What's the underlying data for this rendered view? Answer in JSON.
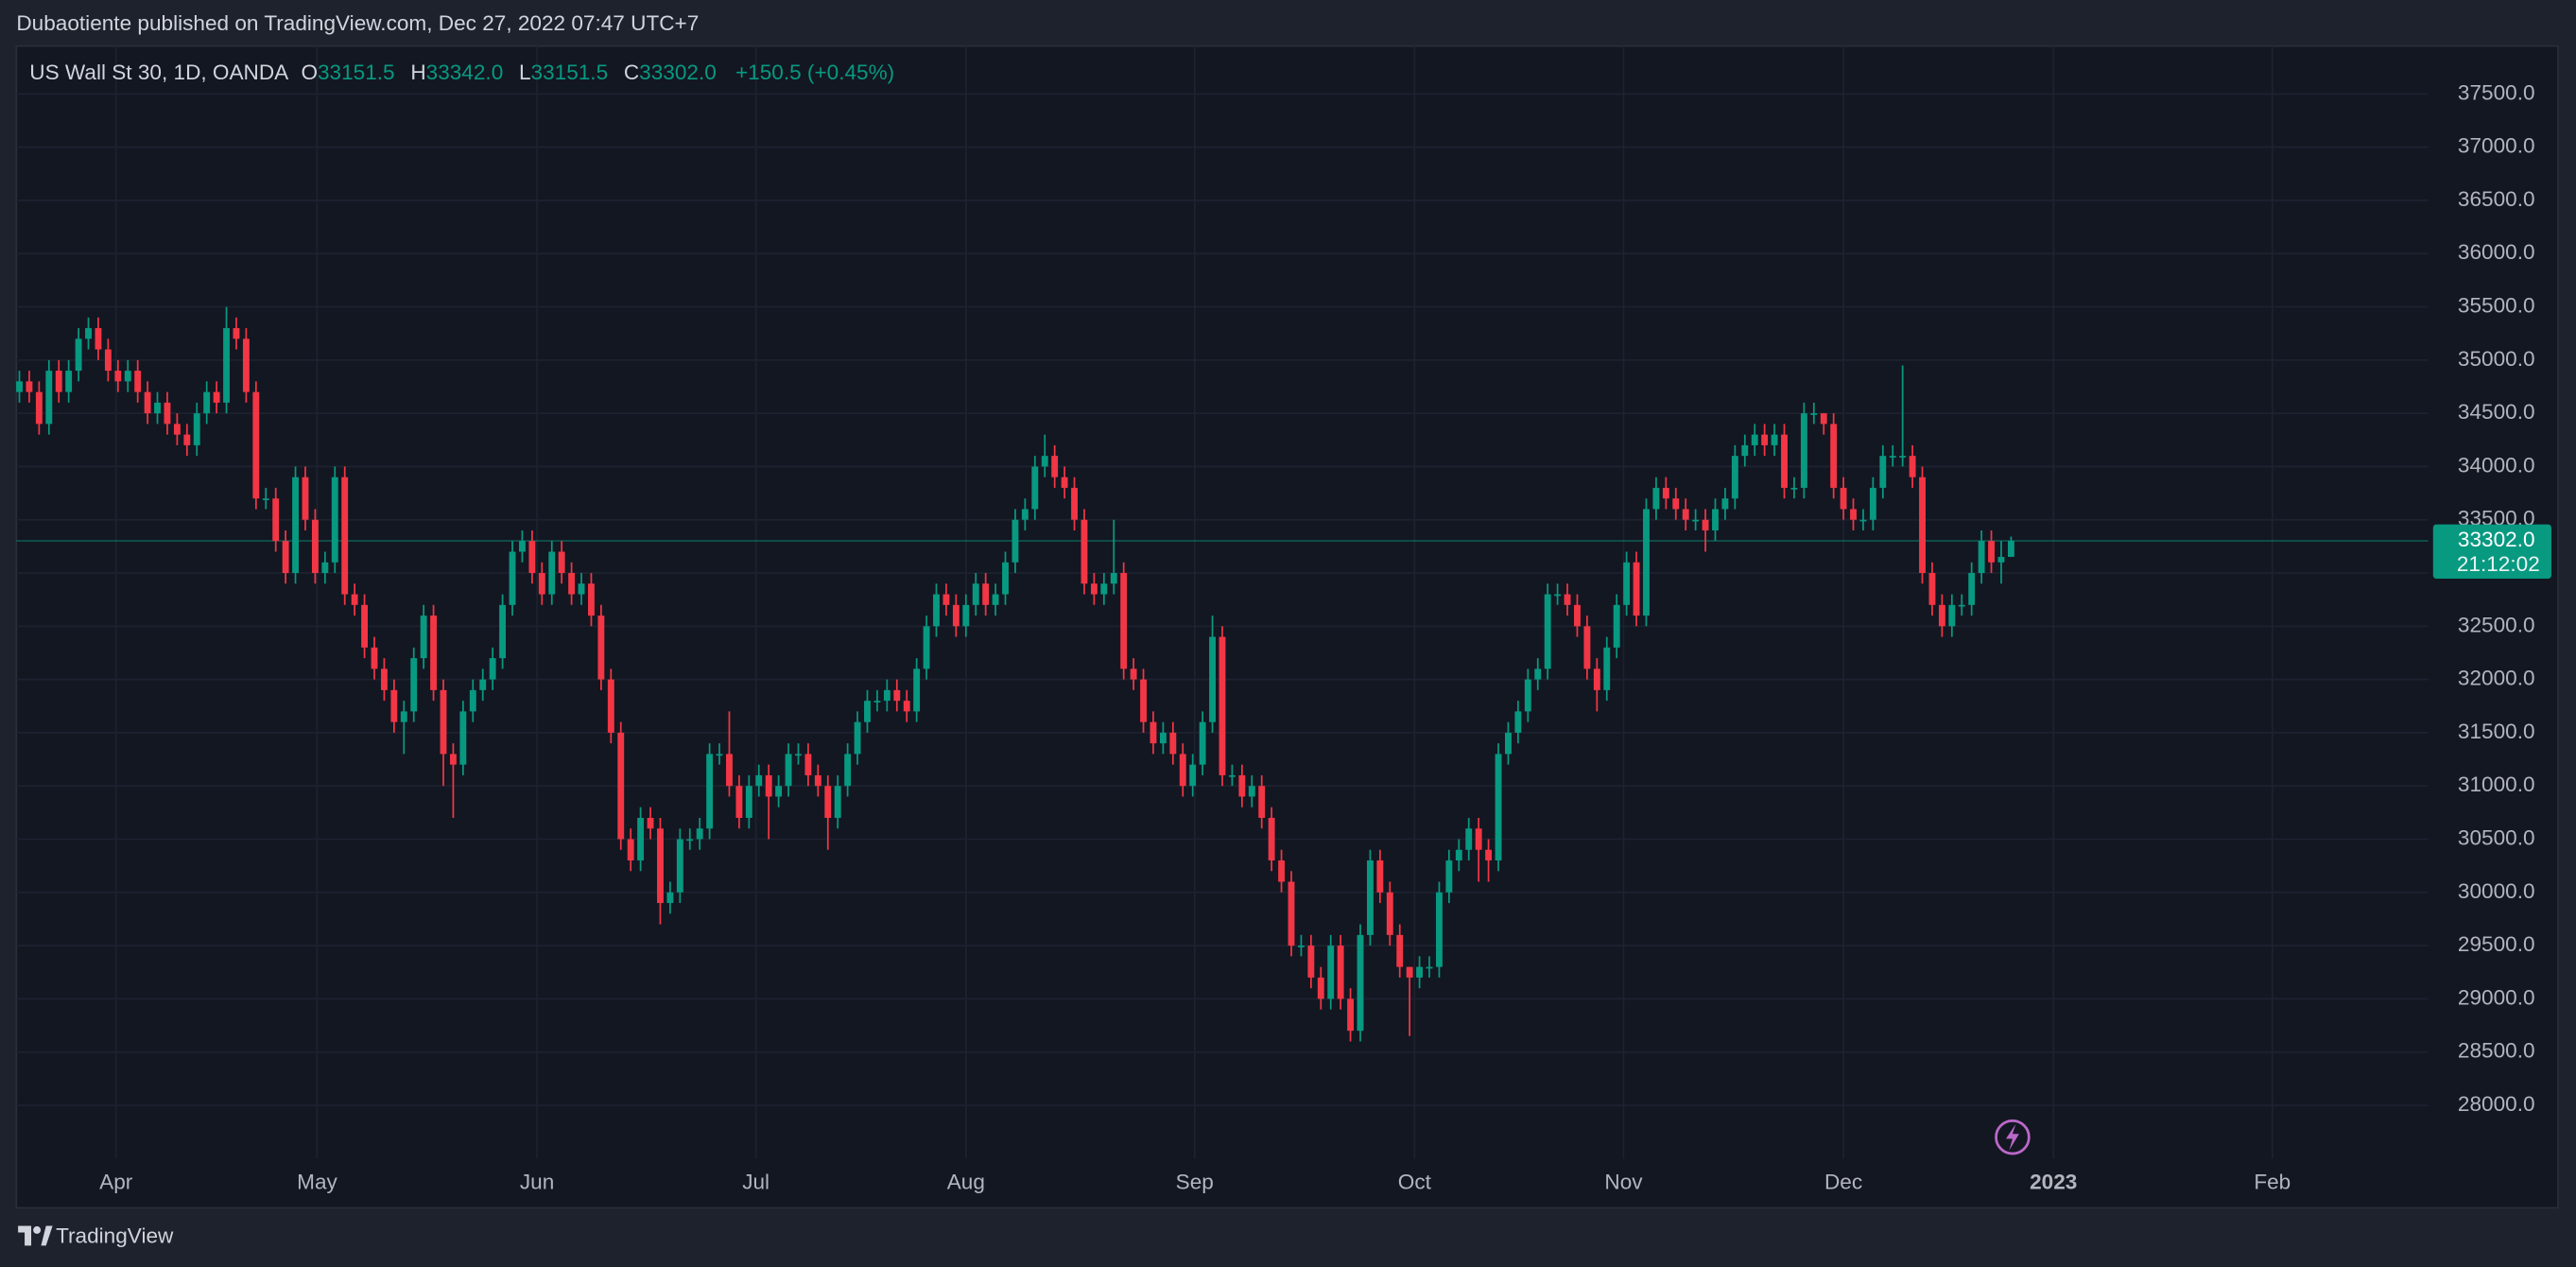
{
  "header": {
    "text": "Dubaotiente published on TradingView.com, Dec 27, 2022 07:47 UTC+7"
  },
  "footer": {
    "brand": "TradingView"
  },
  "chart_data": {
    "type": "candlestick",
    "legend": {
      "symbol": "US Wall St 30, 1D, OANDA",
      "items": [
        {
          "key": "O",
          "value": "33151.5"
        },
        {
          "key": "H",
          "value": "33342.0"
        },
        {
          "key": "L",
          "value": "33151.5"
        },
        {
          "key": "C",
          "value": "33302.0"
        }
      ],
      "change": "+150.5 (+0.45%)"
    },
    "last_price_label": "33302.0",
    "countdown": "21:12:02",
    "up_color": "#089981",
    "down_color": "#f23645",
    "grid": true,
    "xlim": [
      -0.3,
      244.3
    ],
    "xticks": [
      {
        "value": 9.8,
        "label": "Apr"
      },
      {
        "value": 30.2,
        "label": "May"
      },
      {
        "value": 52.5,
        "label": "Jun"
      },
      {
        "value": 74.7,
        "label": "Jul"
      },
      {
        "value": 96,
        "label": "Aug"
      },
      {
        "value": 119.2,
        "label": "Sep"
      },
      {
        "value": 141.5,
        "label": "Oct"
      },
      {
        "value": 162.7,
        "label": "Nov"
      },
      {
        "value": 185,
        "label": "Dec"
      },
      {
        "value": 206.3,
        "label": "2023"
      },
      {
        "value": 228.5,
        "label": "Feb"
      }
    ],
    "ylim": [
      27500,
      37950
    ],
    "yticks": [
      {
        "value": 28000,
        "label": "28000.0"
      },
      {
        "value": 28500,
        "label": "28500.0"
      },
      {
        "value": 29000,
        "label": "29000.0"
      },
      {
        "value": 29500,
        "label": "29500.0"
      },
      {
        "value": 30000,
        "label": "30000.0"
      },
      {
        "value": 30500,
        "label": "30500.0"
      },
      {
        "value": 31000,
        "label": "31000.0"
      },
      {
        "value": 31500,
        "label": "31500.0"
      },
      {
        "value": 32000,
        "label": "32000.0"
      },
      {
        "value": 32500,
        "label": "32500.0"
      },
      {
        "value": 33000,
        "label": "33000.0"
      },
      {
        "value": 33500,
        "label": "33500.0"
      },
      {
        "value": 34000,
        "label": "34000.0"
      },
      {
        "value": 34500,
        "label": "34500.0"
      },
      {
        "value": 35000,
        "label": "35000.0"
      },
      {
        "value": 35500,
        "label": "35500.0"
      },
      {
        "value": 36000,
        "label": "36000.0"
      },
      {
        "value": 36500,
        "label": "36500.0"
      },
      {
        "value": 37000,
        "label": "37000.0"
      },
      {
        "value": 37500,
        "label": "37500.0"
      }
    ],
    "open": [
      34700,
      34800,
      34700,
      34400,
      34900,
      34700,
      34900,
      35200,
      35300,
      35100,
      34900,
      34800,
      34900,
      34700,
      34500,
      34600,
      34400,
      34300,
      34200,
      34500,
      34700,
      34600,
      35300,
      35200,
      34700,
      33700,
      33700,
      33300,
      33000,
      33900,
      33500,
      33000,
      33100,
      33900,
      32800,
      32700,
      32300,
      32100,
      31900,
      31600,
      31700,
      32200,
      32600,
      31900,
      31300,
      31200,
      31700,
      31900,
      32000,
      32200,
      32700,
      33200,
      33300,
      33000,
      32800,
      33200,
      33000,
      32800,
      32900,
      32600,
      32000,
      31500,
      30500,
      30300,
      30700,
      30600,
      29900,
      30000,
      30500,
      30500,
      30600,
      31300,
      31300,
      31000,
      30700,
      31000,
      31100,
      30900,
      31000,
      31300,
      31300,
      31100,
      31000,
      30700,
      31000,
      31300,
      31600,
      31800,
      31800,
      31900,
      31800,
      31700,
      32100,
      32500,
      32800,
      32700,
      32500,
      32700,
      32900,
      32700,
      32800,
      33100,
      33500,
      33600,
      34000,
      34100,
      33900,
      33800,
      33500,
      32900,
      32800,
      32900,
      33000,
      32100,
      32000,
      31600,
      31400,
      31500,
      31300,
      31000,
      31200,
      31600,
      32400,
      31100,
      31100,
      30900,
      31000,
      30700,
      30300,
      30100,
      29500,
      29500,
      29200,
      29000,
      29500,
      29000,
      28700,
      29600,
      30300,
      30000,
      29600,
      29300,
      29200,
      29300,
      29300,
      30000,
      30300,
      30400,
      30600,
      30400,
      30300,
      31300,
      31500,
      31700,
      32000,
      32100,
      32800,
      32800,
      32700,
      32500,
      32100,
      31900,
      32300,
      32700,
      33100,
      32600,
      33600,
      33800,
      33700,
      33600,
      33500,
      33500,
      33400,
      33600,
      33700,
      34100,
      34200,
      34300,
      34200,
      34300,
      33800,
      33800,
      34500,
      34500,
      34400,
      33800,
      33600,
      33500,
      33500,
      33800,
      34100,
      34100,
      34100,
      33900,
      33000,
      32700,
      32500,
      32700,
      32700,
      33000,
      33300,
      33100,
      33151.5
    ],
    "high": [
      34900,
      34900,
      34800,
      35000,
      35000,
      35000,
      35300,
      35400,
      35400,
      35200,
      35000,
      35000,
      35000,
      34800,
      34700,
      34700,
      34500,
      34400,
      34600,
      34800,
      34800,
      35500,
      35400,
      35300,
      34800,
      33800,
      33800,
      33400,
      34000,
      34000,
      33600,
      33200,
      34000,
      34000,
      32900,
      32800,
      32400,
      32200,
      32000,
      31800,
      32300,
      32700,
      32700,
      32000,
      31400,
      31800,
      32000,
      32100,
      32300,
      32800,
      33300,
      33400,
      33400,
      33100,
      33300,
      33300,
      33100,
      33000,
      33000,
      32700,
      32100,
      31600,
      30600,
      30800,
      30800,
      30700,
      30100,
      30600,
      30600,
      30700,
      31400,
      31400,
      31700,
      31100,
      31100,
      31200,
      31200,
      31100,
      31400,
      31400,
      31400,
      31200,
      31100,
      31100,
      31400,
      31700,
      31900,
      31900,
      32000,
      32000,
      31900,
      32200,
      32600,
      32900,
      32900,
      32800,
      32800,
      33000,
      33000,
      32900,
      33200,
      33600,
      33700,
      34100,
      34300,
      34200,
      34000,
      33900,
      33600,
      33000,
      33000,
      33500,
      33100,
      32200,
      32100,
      31700,
      31600,
      31600,
      31400,
      31300,
      31700,
      32600,
      32500,
      31200,
      31200,
      31100,
      31100,
      30800,
      30400,
      30200,
      29600,
      29600,
      29300,
      29600,
      29600,
      29100,
      29700,
      30400,
      30400,
      30100,
      29700,
      29300,
      29400,
      29400,
      30100,
      30400,
      30500,
      30700,
      30700,
      30500,
      31400,
      31600,
      31800,
      32100,
      32200,
      32900,
      32900,
      32900,
      32800,
      32600,
      32200,
      32400,
      32800,
      33200,
      33200,
      33700,
      33900,
      33900,
      33800,
      33700,
      33600,
      33600,
      33700,
      33800,
      34200,
      34300,
      34400,
      34400,
      34400,
      34400,
      33900,
      34600,
      34600,
      34500,
      34500,
      33900,
      33700,
      33600,
      33900,
      34200,
      34200,
      34950,
      34200,
      34000,
      33100,
      32800,
      32800,
      32800,
      33100,
      33400,
      33400,
      33300,
      33342
    ],
    "low": [
      34600,
      34600,
      34300,
      34300,
      34600,
      34600,
      34800,
      35100,
      35000,
      34800,
      34700,
      34700,
      34600,
      34400,
      34400,
      34300,
      34200,
      34100,
      34100,
      34400,
      34500,
      34500,
      35100,
      34600,
      33600,
      33600,
      33200,
      32900,
      32900,
      33400,
      32900,
      32900,
      33000,
      32700,
      32600,
      32200,
      32000,
      31800,
      31500,
      31300,
      31600,
      32100,
      31800,
      31000,
      30700,
      31100,
      31600,
      31800,
      31900,
      32100,
      32600,
      33100,
      32900,
      32700,
      32700,
      32900,
      32700,
      32700,
      32500,
      31900,
      31400,
      30400,
      30200,
      30200,
      30500,
      29700,
      29800,
      29900,
      30400,
      30400,
      30500,
      31200,
      30900,
      30600,
      30600,
      30900,
      30500,
      30800,
      30900,
      31200,
      31000,
      30900,
      30400,
      30600,
      30900,
      31200,
      31500,
      31700,
      31700,
      31700,
      31600,
      31600,
      32000,
      32400,
      32600,
      32400,
      32400,
      32600,
      32600,
      32600,
      32700,
      33000,
      33400,
      33500,
      33900,
      33800,
      33700,
      33400,
      32800,
      32700,
      32700,
      32800,
      32000,
      31900,
      31500,
      31300,
      31300,
      31200,
      30900,
      30900,
      31100,
      31500,
      31000,
      31000,
      30800,
      30800,
      30600,
      30200,
      30000,
      29400,
      29400,
      29100,
      28900,
      28900,
      28900,
      28600,
      28600,
      29500,
      29900,
      29500,
      29200,
      28650,
      29100,
      29200,
      29200,
      29900,
      30200,
      30300,
      30100,
      30100,
      30200,
      31200,
      31400,
      31600,
      31900,
      32000,
      32700,
      32600,
      32400,
      32000,
      31700,
      31800,
      32200,
      32600,
      32500,
      32500,
      33500,
      33600,
      33500,
      33400,
      33400,
      33200,
      33300,
      33500,
      33600,
      34000,
      34100,
      34100,
      34100,
      33700,
      33700,
      33700,
      34400,
      34300,
      33700,
      33500,
      33400,
      33400,
      33400,
      33700,
      34000,
      34000,
      33800,
      32900,
      32600,
      32400,
      32400,
      32600,
      32600,
      32900,
      33000,
      32900,
      33151.5
    ],
    "close": [
      34800,
      34700,
      34400,
      34900,
      34700,
      34900,
      35200,
      35300,
      35100,
      34900,
      34800,
      34900,
      34700,
      34500,
      34600,
      34400,
      34300,
      34200,
      34500,
      34700,
      34600,
      35300,
      35200,
      34700,
      33700,
      33700,
      33300,
      33000,
      33900,
      33500,
      33000,
      33100,
      33900,
      32800,
      32700,
      32300,
      32100,
      31900,
      31600,
      31700,
      32200,
      32600,
      31900,
      31300,
      31200,
      31700,
      31900,
      32000,
      32200,
      32700,
      33200,
      33300,
      33000,
      32800,
      33200,
      33000,
      32800,
      32900,
      32600,
      32000,
      31500,
      30500,
      30300,
      30700,
      30600,
      29900,
      30000,
      30500,
      30500,
      30600,
      31300,
      31300,
      31000,
      30700,
      31000,
      31100,
      30900,
      31000,
      31300,
      31300,
      31100,
      31000,
      30700,
      31000,
      31300,
      31600,
      31800,
      31800,
      31900,
      31800,
      31700,
      32100,
      32500,
      32800,
      32700,
      32500,
      32700,
      32900,
      32700,
      32800,
      33100,
      33500,
      33600,
      34000,
      34100,
      33900,
      33800,
      33500,
      32900,
      32800,
      32900,
      33000,
      32100,
      32000,
      31600,
      31400,
      31500,
      31300,
      31000,
      31200,
      31600,
      32400,
      31100,
      31100,
      30900,
      31000,
      30700,
      30300,
      30100,
      29500,
      29500,
      29200,
      29000,
      29500,
      29000,
      28700,
      29600,
      30300,
      30000,
      29600,
      29300,
      29200,
      29300,
      29300,
      30000,
      30300,
      30400,
      30600,
      30400,
      30300,
      31300,
      31500,
      31700,
      32000,
      32100,
      32800,
      32800,
      32700,
      32500,
      32100,
      31900,
      32300,
      32700,
      33100,
      32600,
      33600,
      33800,
      33700,
      33600,
      33500,
      33500,
      33400,
      33600,
      33700,
      34100,
      34200,
      34300,
      34200,
      34300,
      33800,
      33800,
      34500,
      34500,
      34400,
      33800,
      33600,
      33500,
      33500,
      33800,
      34100,
      34100,
      34100,
      33900,
      33000,
      32700,
      32500,
      32700,
      32700,
      33000,
      33300,
      33100,
      33151.5,
      33302
    ]
  }
}
